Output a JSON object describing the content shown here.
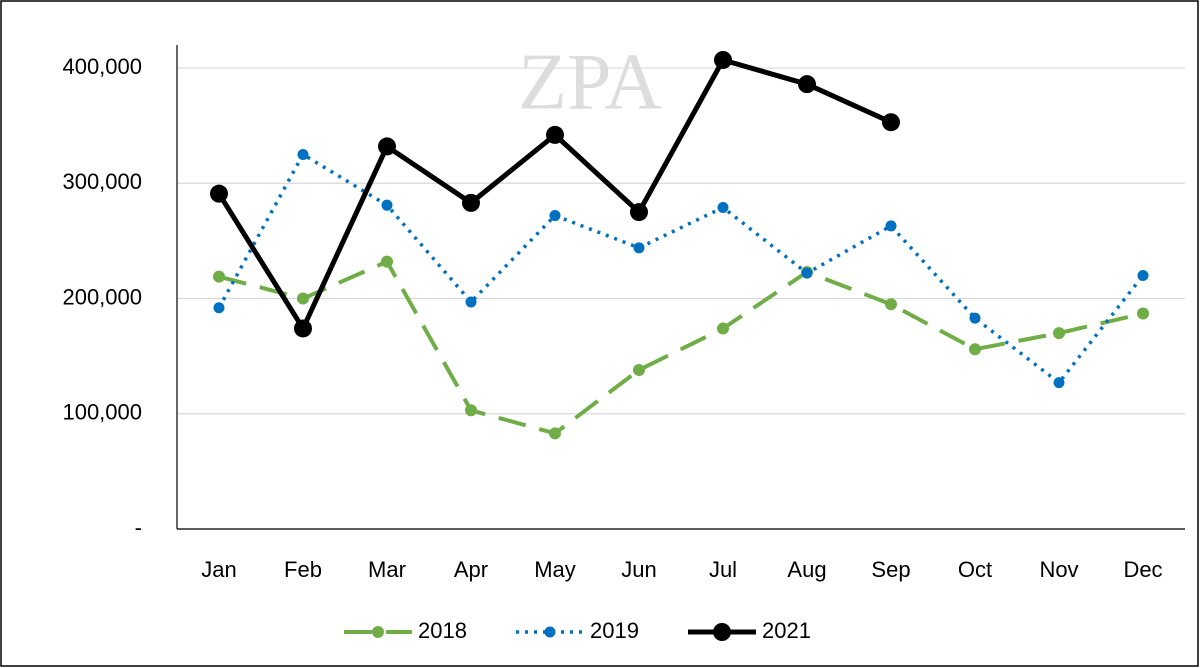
{
  "chart_data": {
    "type": "line",
    "watermark": "ZPA",
    "categories": [
      "Jan",
      "Feb",
      "Mar",
      "Apr",
      "May",
      "Jun",
      "Jul",
      "Aug",
      "Sep",
      "Oct",
      "Nov",
      "Dec"
    ],
    "series": [
      {
        "name": "2018",
        "color": "#70ad47",
        "style": "dashed",
        "values": [
          219000,
          200000,
          232000,
          103000,
          83000,
          138000,
          174000,
          223000,
          195000,
          156000,
          170000,
          187000
        ]
      },
      {
        "name": "2019",
        "color": "#0070c0",
        "style": "dotted",
        "values": [
          192000,
          325000,
          281000,
          197000,
          272000,
          244000,
          279000,
          222000,
          263000,
          183000,
          127000,
          220000
        ]
      },
      {
        "name": "2021",
        "color": "#000000",
        "style": "solid",
        "values": [
          291000,
          174000,
          332000,
          283000,
          342000,
          275000,
          407000,
          386000,
          353000,
          null,
          null,
          null
        ]
      }
    ],
    "ylim": [
      0,
      420000
    ],
    "yticks": [
      {
        "value": 0,
        "label": "-"
      },
      {
        "value": 100000,
        "label": "100,000"
      },
      {
        "value": 200000,
        "label": "200,000"
      },
      {
        "value": 300000,
        "label": "300,000"
      },
      {
        "value": 400000,
        "label": "400,000"
      }
    ],
    "grid": true,
    "legend": "bottom"
  }
}
